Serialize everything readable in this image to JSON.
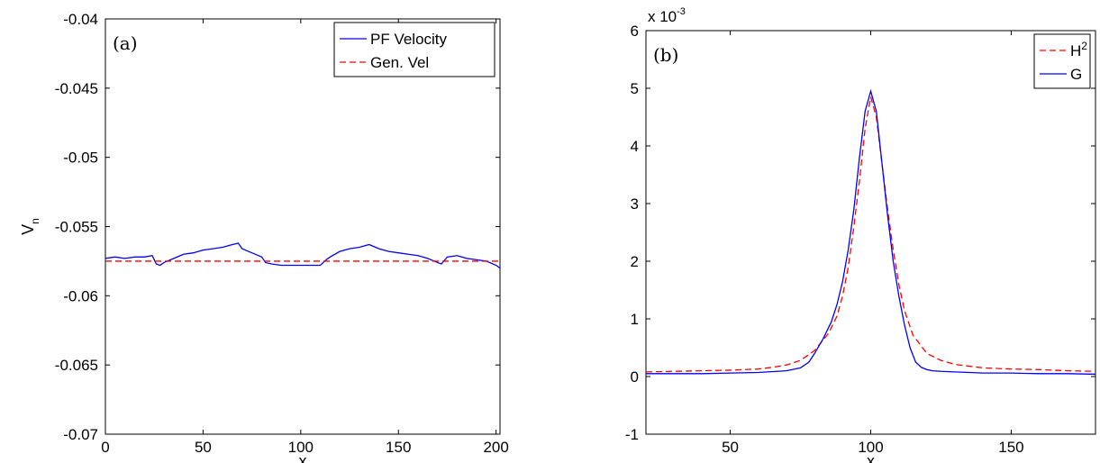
{
  "chart_data": [
    {
      "type": "line",
      "panel_label": "(a)",
      "xlabel": "x",
      "ylabel": "V",
      "ylabel_sub": "n",
      "xlim": [
        0,
        202
      ],
      "ylim": [
        -0.07,
        -0.04
      ],
      "x_ticks": [
        0,
        50,
        100,
        150,
        200
      ],
      "x_tick_labels": [
        "0",
        "50",
        "100",
        "150",
        "200"
      ],
      "y_ticks": [
        -0.07,
        -0.065,
        -0.06,
        -0.055,
        -0.05,
        -0.045,
        -0.04
      ],
      "y_tick_labels": [
        "-0.07",
        "-0.065",
        "-0.06",
        "-0.055",
        "-0.05",
        "-0.045",
        "-0.04"
      ],
      "grid": false,
      "legend_position": "top-right",
      "series": [
        {
          "name": "PF Velocity",
          "color": "#0000ff",
          "style": "solid",
          "x": [
            0,
            5,
            10,
            15,
            20,
            24,
            26,
            28,
            30,
            35,
            40,
            45,
            50,
            55,
            60,
            65,
            68,
            70,
            75,
            80,
            82,
            85,
            90,
            95,
            100,
            105,
            110,
            113,
            115,
            120,
            125,
            130,
            135,
            140,
            145,
            150,
            155,
            160,
            165,
            170,
            172,
            175,
            180,
            185,
            190,
            195,
            200,
            202
          ],
          "y": [
            -0.0573,
            -0.0572,
            -0.0573,
            -0.0572,
            -0.0572,
            -0.0571,
            -0.0577,
            -0.0578,
            -0.0576,
            -0.0573,
            -0.057,
            -0.0569,
            -0.0567,
            -0.0566,
            -0.0565,
            -0.0563,
            -0.0562,
            -0.0566,
            -0.0569,
            -0.0572,
            -0.0576,
            -0.0577,
            -0.0578,
            -0.0578,
            -0.0578,
            -0.0578,
            -0.0578,
            -0.0574,
            -0.0572,
            -0.0568,
            -0.0566,
            -0.0565,
            -0.0563,
            -0.0566,
            -0.0568,
            -0.0569,
            -0.057,
            -0.0571,
            -0.0573,
            -0.0576,
            -0.0577,
            -0.0572,
            -0.0571,
            -0.0573,
            -0.0574,
            -0.0575,
            -0.0578,
            -0.058
          ]
        },
        {
          "name": "Gen. Vel",
          "color": "#ff0000",
          "style": "dashed",
          "x": [
            0,
            202
          ],
          "y": [
            -0.0575,
            -0.0575
          ]
        }
      ]
    },
    {
      "type": "line",
      "panel_label": "(b)",
      "xlabel": "x",
      "exponent_label": "x 10",
      "exponent_sup": "-3",
      "xlim": [
        20,
        180
      ],
      "ylim": [
        -1,
        6
      ],
      "x_ticks": [
        50,
        100,
        150
      ],
      "x_tick_labels": [
        "50",
        "100",
        "150"
      ],
      "y_ticks": [
        -1,
        0,
        1,
        2,
        3,
        4,
        5,
        6
      ],
      "y_tick_labels": [
        "-1",
        "0",
        "1",
        "2",
        "3",
        "4",
        "5",
        "6"
      ],
      "grid": false,
      "legend_position": "top-right",
      "series": [
        {
          "name": "H",
          "name_sup": "2",
          "color": "#ff0000",
          "style": "dashed",
          "x": [
            20,
            30,
            40,
            50,
            60,
            65,
            70,
            75,
            80,
            85,
            88,
            90,
            92,
            94,
            96,
            98,
            100,
            102,
            104,
            106,
            108,
            110,
            112,
            115,
            120,
            125,
            130,
            140,
            150,
            160,
            170,
            180
          ],
          "y": [
            0.08,
            0.09,
            0.1,
            0.11,
            0.13,
            0.16,
            0.2,
            0.28,
            0.45,
            0.75,
            1.05,
            1.4,
            1.9,
            2.6,
            3.4,
            4.3,
            4.85,
            4.5,
            3.7,
            2.9,
            2.2,
            1.6,
            1.15,
            0.72,
            0.4,
            0.28,
            0.21,
            0.15,
            0.13,
            0.12,
            0.1,
            0.09
          ]
        },
        {
          "name": "G",
          "color": "#0000ff",
          "style": "solid",
          "x": [
            20,
            30,
            40,
            50,
            60,
            70,
            75,
            78,
            80,
            83,
            86,
            88,
            90,
            92,
            94,
            96,
            98,
            100,
            102,
            104,
            106,
            108,
            110,
            112,
            114,
            116,
            118,
            120,
            122,
            125,
            130,
            140,
            150,
            160,
            170,
            180
          ],
          "y": [
            0.05,
            0.05,
            0.05,
            0.06,
            0.07,
            0.1,
            0.15,
            0.25,
            0.4,
            0.65,
            0.95,
            1.25,
            1.65,
            2.2,
            2.9,
            3.8,
            4.6,
            4.95,
            4.6,
            3.7,
            2.8,
            2.0,
            1.4,
            0.9,
            0.5,
            0.25,
            0.16,
            0.12,
            0.1,
            0.09,
            0.08,
            0.06,
            0.06,
            0.05,
            0.05,
            0.04
          ]
        }
      ]
    }
  ]
}
